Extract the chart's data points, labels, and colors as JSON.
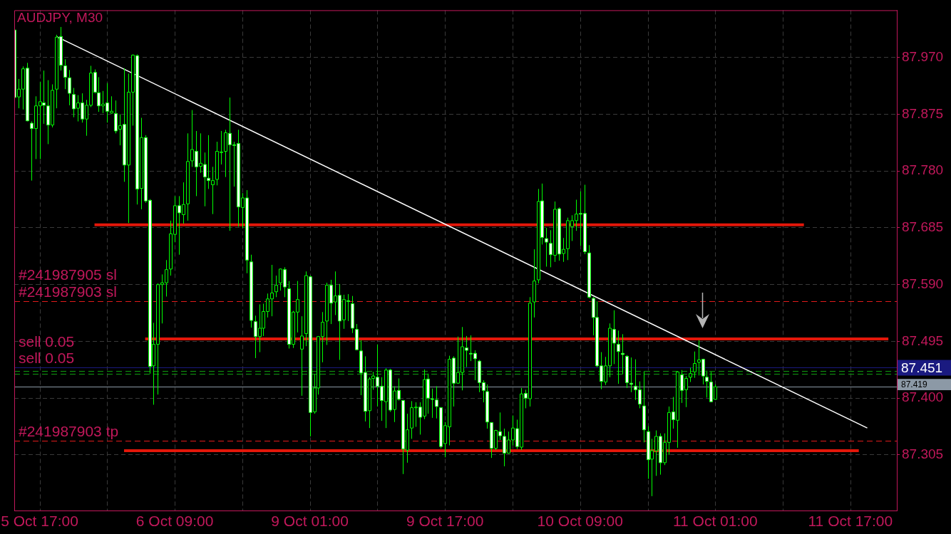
{
  "chart_data": {
    "type": "candlestick",
    "title": "AUDJPY, M30",
    "categories": [
      null,
      null,
      null,
      null,
      null,
      null,
      "5 Oct 17:00",
      null,
      null,
      null,
      null,
      null,
      null,
      null,
      null,
      null,
      null,
      null,
      null,
      null,
      null,
      null,
      null,
      null,
      null,
      null,
      null,
      null,
      null,
      null,
      null,
      null,
      null,
      null,
      null,
      null,
      null,
      null,
      "6 Oct 09:00",
      null,
      null,
      null,
      null,
      null,
      null,
      null,
      null,
      null,
      null,
      null,
      null,
      null,
      null,
      null,
      null,
      null,
      null,
      null,
      null,
      null,
      null,
      null,
      null,
      null,
      null,
      null,
      null,
      null,
      null,
      null,
      "9 Oct 01:00",
      null,
      null,
      null,
      null,
      null,
      null,
      null,
      null,
      null,
      null,
      null,
      null,
      null,
      null,
      null,
      null,
      null,
      null,
      null,
      null,
      null,
      null,
      null,
      null,
      null,
      null,
      null,
      null,
      null,
      null,
      null,
      "9 Oct 17:00",
      null,
      null,
      null,
      null,
      null,
      null,
      null,
      null,
      null,
      null,
      null,
      null,
      null,
      null,
      null,
      null,
      null,
      null,
      null,
      null,
      null,
      null,
      null,
      null,
      null,
      null,
      null,
      null,
      null,
      null,
      null,
      "10 Oct 09:00",
      null,
      null,
      null,
      null,
      null,
      null,
      null,
      null,
      null,
      null,
      null,
      null,
      null,
      null,
      null,
      null,
      null,
      null,
      null,
      null,
      null,
      null,
      null,
      null,
      null,
      null,
      null,
      null,
      null,
      null,
      null,
      "11 Oct 01:00",
      null,
      null,
      null,
      null,
      null,
      null,
      null,
      null,
      null,
      null,
      null,
      null,
      null,
      null,
      null,
      null,
      null,
      null,
      null,
      null,
      null,
      null,
      null,
      null,
      null,
      null,
      null,
      null,
      null,
      null,
      null,
      "11 Oct 17:00",
      null,
      null,
      null,
      null,
      null,
      null,
      null,
      null,
      null,
      null,
      null
    ],
    "ohlc": [
      [
        88.016,
        88.016,
        87.903,
        87.903
      ],
      [
        87.904,
        87.934,
        87.885,
        87.917
      ],
      [
        87.917,
        87.955,
        87.883,
        87.951
      ],
      [
        87.952,
        87.961,
        87.863,
        87.864
      ],
      [
        87.86,
        87.863,
        87.764,
        87.851
      ],
      [
        87.851,
        87.905,
        87.8,
        87.889
      ],
      [
        87.889,
        87.929,
        87.8,
        87.896
      ],
      [
        87.894,
        87.948,
        87.859,
        87.89
      ],
      [
        87.889,
        87.932,
        87.825,
        87.857
      ],
      [
        87.857,
        87.925,
        87.853,
        87.915
      ],
      [
        87.917,
        88.008,
        87.885,
        88.004
      ],
      [
        88.005,
        88.021,
        87.948,
        87.957
      ],
      [
        87.956,
        87.967,
        87.917,
        87.937
      ],
      [
        87.936,
        87.949,
        87.89,
        87.91
      ],
      [
        87.908,
        87.919,
        87.87,
        87.884
      ],
      [
        87.885,
        87.907,
        87.863,
        87.894
      ],
      [
        87.894,
        87.91,
        87.861,
        87.867
      ],
      [
        87.867,
        87.899,
        87.839,
        87.89
      ],
      [
        87.89,
        87.956,
        87.887,
        87.944
      ],
      [
        87.945,
        87.95,
        87.91,
        87.912
      ],
      [
        87.911,
        87.937,
        87.879,
        87.889
      ],
      [
        87.889,
        87.914,
        87.877,
        87.892
      ],
      [
        87.894,
        87.927,
        87.861,
        87.88
      ],
      [
        87.877,
        87.905,
        87.876,
        87.88
      ],
      [
        87.876,
        87.898,
        87.843,
        87.847
      ],
      [
        87.85,
        87.875,
        87.823,
        87.856
      ],
      [
        87.858,
        87.952,
        87.762,
        87.79
      ],
      [
        87.79,
        87.943,
        87.693,
        87.912
      ],
      [
        87.912,
        87.975,
        87.856,
        87.974
      ],
      [
        87.973,
        87.975,
        87.724,
        87.75
      ],
      [
        87.751,
        87.869,
        87.716,
        87.836
      ],
      [
        87.836,
        87.84,
        87.727,
        87.73
      ],
      [
        87.731,
        87.733,
        87.441,
        87.453
      ],
      [
        87.454,
        87.526,
        87.389,
        87.49
      ],
      [
        87.49,
        87.592,
        87.406,
        87.59
      ],
      [
        87.59,
        87.607,
        87.525,
        87.593
      ],
      [
        87.593,
        87.631,
        87.57,
        87.615
      ],
      [
        87.616,
        87.697,
        87.605,
        87.675
      ],
      [
        87.674,
        87.738,
        87.661,
        87.722
      ],
      [
        87.722,
        87.738,
        87.64,
        87.71
      ],
      [
        87.707,
        87.761,
        87.692,
        87.724
      ],
      [
        87.725,
        87.843,
        87.697,
        87.796
      ],
      [
        87.797,
        87.882,
        87.787,
        87.816
      ],
      [
        87.813,
        87.847,
        87.738,
        87.787
      ],
      [
        87.788,
        87.843,
        87.777,
        87.793
      ],
      [
        87.791,
        87.811,
        87.721,
        87.77
      ],
      [
        87.768,
        87.84,
        87.75,
        87.764
      ],
      [
        87.757,
        87.787,
        87.708,
        87.764
      ],
      [
        87.766,
        87.829,
        87.756,
        87.813
      ],
      [
        87.811,
        87.847,
        87.791,
        87.812
      ],
      [
        87.813,
        87.849,
        87.77,
        87.844
      ],
      [
        87.843,
        87.903,
        87.68,
        87.824
      ],
      [
        87.824,
        87.829,
        87.754,
        87.823
      ],
      [
        87.826,
        87.849,
        87.687,
        87.72
      ],
      [
        87.719,
        87.743,
        87.684,
        87.735
      ],
      [
        87.735,
        87.748,
        87.609,
        87.631
      ],
      [
        87.628,
        87.64,
        87.518,
        87.53
      ],
      [
        87.528,
        87.538,
        87.467,
        87.503
      ],
      [
        87.503,
        87.557,
        87.477,
        87.517
      ],
      [
        87.517,
        87.558,
        87.504,
        87.545
      ],
      [
        87.545,
        87.575,
        87.535,
        87.566
      ],
      [
        87.566,
        87.623,
        87.537,
        87.576
      ],
      [
        87.578,
        87.605,
        87.569,
        87.589
      ],
      [
        87.593,
        87.617,
        87.58,
        87.616
      ],
      [
        87.615,
        87.619,
        87.569,
        87.586
      ],
      [
        87.583,
        87.596,
        87.483,
        87.49
      ],
      [
        87.49,
        87.546,
        87.484,
        87.544
      ],
      [
        87.544,
        87.596,
        87.51,
        87.565
      ],
      [
        87.482,
        87.537,
        87.404,
        87.504
      ],
      [
        87.508,
        87.612,
        87.487,
        87.605
      ],
      [
        87.603,
        87.605,
        87.336,
        87.376
      ],
      [
        87.377,
        87.44,
        87.374,
        87.417
      ],
      [
        87.417,
        87.504,
        87.406,
        87.503
      ],
      [
        87.503,
        87.544,
        87.46,
        87.527
      ],
      [
        87.529,
        87.593,
        87.489,
        87.589
      ],
      [
        87.589,
        87.598,
        87.524,
        87.559
      ],
      [
        87.561,
        87.612,
        87.539,
        87.571
      ],
      [
        87.572,
        87.591,
        87.464,
        87.529
      ],
      [
        87.531,
        87.573,
        87.516,
        87.565
      ],
      [
        87.563,
        87.574,
        87.529,
        87.562
      ],
      [
        87.558,
        87.571,
        87.509,
        87.517
      ],
      [
        87.515,
        87.524,
        87.48,
        87.481
      ],
      [
        87.479,
        87.497,
        87.405,
        87.442
      ],
      [
        87.443,
        87.47,
        87.361,
        87.378
      ],
      [
        87.379,
        87.435,
        87.35,
        87.432
      ],
      [
        87.433,
        87.444,
        87.414,
        87.437
      ],
      [
        87.435,
        87.49,
        87.386,
        87.42
      ],
      [
        87.42,
        87.435,
        87.362,
        87.396
      ],
      [
        87.394,
        87.45,
        87.35,
        87.447
      ],
      [
        87.447,
        87.449,
        87.377,
        87.38
      ],
      [
        87.381,
        87.42,
        87.36,
        87.412
      ],
      [
        87.413,
        87.433,
        87.396,
        87.398
      ],
      [
        87.396,
        87.397,
        87.273,
        87.315
      ],
      [
        87.313,
        87.374,
        87.292,
        87.347
      ],
      [
        87.35,
        87.395,
        87.332,
        87.384
      ],
      [
        87.384,
        87.393,
        87.352,
        87.385
      ],
      [
        87.385,
        87.393,
        87.339,
        87.368
      ],
      [
        87.37,
        87.448,
        87.365,
        87.431
      ],
      [
        87.432,
        87.441,
        87.374,
        87.4
      ],
      [
        87.399,
        87.416,
        87.367,
        87.398
      ],
      [
        87.397,
        87.42,
        87.366,
        87.386
      ],
      [
        87.384,
        87.385,
        87.316,
        87.319
      ],
      [
        87.324,
        87.36,
        87.301,
        87.354
      ],
      [
        87.352,
        87.471,
        87.321,
        87.465
      ],
      [
        87.467,
        87.47,
        87.386,
        87.425
      ],
      [
        87.425,
        87.503,
        87.424,
        87.443
      ],
      [
        87.443,
        87.519,
        87.413,
        87.486
      ],
      [
        87.484,
        87.504,
        87.452,
        87.48
      ],
      [
        87.475,
        87.505,
        87.462,
        87.474
      ],
      [
        87.475,
        87.48,
        87.43,
        87.466
      ],
      [
        87.462,
        87.464,
        87.41,
        87.426
      ],
      [
        87.426,
        87.43,
        87.393,
        87.413
      ],
      [
        87.411,
        87.423,
        87.349,
        87.36
      ],
      [
        87.359,
        87.36,
        87.3,
        87.316
      ],
      [
        87.316,
        87.347,
        87.313,
        87.346
      ],
      [
        87.344,
        87.376,
        87.33,
        87.337
      ],
      [
        87.336,
        87.349,
        87.286,
        87.308
      ],
      [
        87.308,
        87.344,
        87.307,
        87.33
      ],
      [
        87.33,
        87.371,
        87.321,
        87.35
      ],
      [
        87.349,
        87.364,
        87.315,
        87.319
      ],
      [
        87.318,
        87.417,
        87.313,
        87.407
      ],
      [
        87.408,
        87.414,
        87.383,
        87.4
      ],
      [
        87.399,
        87.569,
        87.386,
        87.559
      ],
      [
        87.561,
        87.649,
        87.535,
        87.596
      ],
      [
        87.598,
        87.75,
        87.592,
        87.729
      ],
      [
        87.73,
        87.759,
        87.657,
        87.669
      ],
      [
        87.667,
        87.685,
        87.62,
        87.661
      ],
      [
        87.659,
        87.681,
        87.619,
        87.64
      ],
      [
        87.639,
        87.729,
        87.628,
        87.716
      ],
      [
        87.717,
        87.719,
        87.63,
        87.641
      ],
      [
        87.642,
        87.668,
        87.628,
        87.649
      ],
      [
        87.65,
        87.702,
        87.631,
        87.697
      ],
      [
        87.687,
        87.706,
        87.663,
        87.697
      ],
      [
        87.697,
        87.732,
        87.68,
        87.708
      ],
      [
        87.709,
        87.746,
        87.655,
        87.708
      ],
      [
        87.709,
        87.757,
        87.641,
        87.645
      ],
      [
        87.643,
        87.656,
        87.567,
        87.569
      ],
      [
        87.567,
        87.569,
        87.505,
        87.535
      ],
      [
        87.535,
        87.562,
        87.452,
        87.454
      ],
      [
        87.454,
        87.477,
        87.415,
        87.428
      ],
      [
        87.427,
        87.469,
        87.422,
        87.454
      ],
      [
        87.454,
        87.525,
        87.435,
        87.517
      ],
      [
        87.515,
        87.547,
        87.457,
        87.492
      ],
      [
        87.49,
        87.513,
        87.424,
        87.478
      ],
      [
        87.475,
        87.507,
        87.44,
        87.473
      ],
      [
        87.47,
        87.472,
        87.417,
        87.426
      ],
      [
        87.425,
        87.468,
        87.41,
        87.423
      ],
      [
        87.42,
        87.465,
        87.397,
        87.414
      ],
      [
        87.414,
        87.428,
        87.383,
        87.39
      ],
      [
        87.387,
        87.445,
        87.326,
        87.347
      ],
      [
        87.344,
        87.353,
        87.265,
        87.297
      ],
      [
        87.298,
        87.332,
        87.236,
        87.312
      ],
      [
        87.312,
        87.346,
        87.27,
        87.336
      ],
      [
        87.336,
        87.341,
        87.272,
        87.292
      ],
      [
        87.292,
        87.341,
        87.288,
        87.326
      ],
      [
        87.326,
        87.386,
        87.305,
        87.376
      ],
      [
        87.377,
        87.402,
        87.349,
        87.364
      ],
      [
        87.363,
        87.445,
        87.317,
        87.444
      ],
      [
        87.439,
        87.447,
        87.392,
        87.413
      ],
      [
        87.414,
        87.437,
        87.385,
        87.433
      ],
      [
        87.435,
        87.451,
        87.427,
        87.441
      ],
      [
        87.444,
        87.478,
        87.434,
        87.458
      ],
      [
        87.46,
        87.497,
        87.438,
        87.464
      ],
      [
        87.465,
        87.466,
        87.423,
        87.437
      ],
      [
        87.435,
        87.446,
        87.401,
        87.428
      ],
      [
        87.427,
        87.444,
        87.393,
        87.394
      ],
      [
        87.398,
        87.423,
        87.397,
        87.419
      ],
      null,
      null,
      null,
      null,
      null,
      null,
      null,
      null,
      null,
      null,
      null,
      null,
      null,
      null,
      null,
      null,
      null,
      null,
      null,
      null,
      null,
      null,
      null,
      null,
      null,
      null,
      null,
      null,
      null,
      null,
      null,
      null,
      null,
      null,
      null,
      null,
      null,
      null,
      null,
      null,
      null,
      null,
      null
    ],
    "color": "#00ff00",
    "colors": [
      "#ffffff",
      "#000000",
      "#000000",
      "#ffffff",
      "#ffffff",
      "#000000",
      "#000000",
      "#ffffff",
      "#ffffff",
      "#000000",
      "#000000",
      "#ffffff",
      "#ffffff",
      "#ffffff",
      "#ffffff",
      "#000000",
      "#ffffff",
      "#000000",
      "#000000",
      "#ffffff",
      "#ffffff",
      "#000000",
      "#ffffff",
      "#000000",
      "#ffffff",
      "#000000",
      "#ffffff",
      "#000000",
      "#000000",
      "#ffffff",
      "#000000",
      "#ffffff",
      "#ffffff",
      "#000000",
      "#000000",
      "#000000",
      "#000000",
      "#000000",
      "#000000",
      "#ffffff",
      "#000000",
      "#000000",
      "#000000",
      "#ffffff",
      "#000000",
      "#ffffff",
      "#ffffff",
      "#000000",
      "#000000",
      "#000000",
      "#000000",
      "#ffffff",
      "#ffffff",
      "#ffffff",
      "#000000",
      "#ffffff",
      "#ffffff",
      "#ffffff",
      "#000000",
      "#000000",
      "#000000",
      "#000000",
      "#000000",
      "#000000",
      "#ffffff",
      "#ffffff",
      "#000000",
      "#000000",
      "#000000",
      "#000000",
      "#ffffff",
      "#000000",
      "#000000",
      "#000000",
      "#000000",
      "#ffffff",
      "#000000",
      "#ffffff",
      "#000000",
      "#ffffff",
      "#ffffff",
      "#ffffff",
      "#ffffff",
      "#ffffff",
      "#000000",
      "#000000",
      "#ffffff",
      "#ffffff",
      "#000000",
      "#ffffff",
      "#000000",
      "#ffffff",
      "#ffffff",
      "#000000",
      "#000000",
      "#000000",
      "#ffffff",
      "#000000",
      "#ffffff",
      "#ffffff",
      "#ffffff",
      "#ffffff",
      "#000000",
      "#000000",
      "#ffffff",
      "#000000",
      "#000000",
      "#ffffff",
      "#ffffff",
      "#ffffff",
      "#ffffff",
      "#ffffff",
      "#ffffff",
      "#ffffff",
      "#000000",
      "#ffffff",
      "#ffffff",
      "#000000",
      "#000000",
      "#ffffff",
      "#000000",
      "#ffffff",
      "#000000",
      "#000000",
      "#000000",
      "#ffffff",
      "#ffffff",
      "#ffffff",
      "#000000",
      "#ffffff",
      "#000000",
      "#000000",
      "#000000",
      "#000000",
      "#ffffff",
      "#ffffff",
      "#ffffff",
      "#ffffff",
      "#ffffff",
      "#ffffff",
      "#000000",
      "#000000",
      "#ffffff",
      "#ffffff",
      "#ffffff",
      "#ffffff",
      "#ffffff",
      "#ffffff",
      "#ffffff",
      "#ffffff",
      "#ffffff",
      "#000000",
      "#000000",
      "#ffffff",
      "#000000",
      "#000000",
      "#ffffff",
      "#000000",
      "#ffffff",
      "#000000",
      "#000000",
      "#000000",
      "#000000",
      "#ffffff",
      "#ffffff",
      "#ffffff",
      "#000000",
      null,
      null,
      null,
      null,
      null,
      null,
      null,
      null,
      null,
      null,
      null,
      null,
      null,
      null,
      null,
      null,
      null,
      null,
      null,
      null,
      null,
      null,
      null,
      null,
      null,
      null,
      null,
      null,
      null,
      null,
      null,
      null,
      null,
      null,
      null,
      null,
      null,
      null,
      null,
      null,
      null,
      null,
      null
    ],
    "series": [
      {
        "type": "line",
        "color": "#ffffff",
        "values": [
          null,
          null,
          null,
          null,
          null,
          null,
          null,
          null,
          null,
          null,
          88.005,
          null,
          null,
          null,
          null,
          null,
          null,
          null,
          null,
          null,
          null,
          null,
          null,
          null,
          null,
          null,
          null,
          null,
          null,
          null,
          null,
          null,
          null,
          null,
          null,
          null,
          null,
          null,
          null,
          null,
          null,
          null,
          null,
          null,
          null,
          null,
          null,
          null,
          null,
          null,
          null,
          null,
          null,
          null,
          null,
          null,
          null,
          null,
          null,
          null,
          null,
          null,
          null,
          null,
          null,
          null,
          null,
          null,
          null,
          null,
          null,
          null,
          null,
          null,
          null,
          null,
          null,
          null,
          null,
          null,
          null,
          null,
          null,
          null,
          null,
          null,
          null,
          null,
          null,
          null,
          null,
          null,
          null,
          null,
          null,
          null,
          null,
          null,
          null,
          null,
          null,
          null,
          null,
          null,
          null,
          null,
          null,
          null,
          null,
          null,
          null,
          null,
          null,
          null,
          null,
          null,
          null,
          null,
          null,
          null,
          null,
          null,
          null,
          null,
          null,
          null,
          null,
          null,
          null,
          null,
          null,
          null,
          null,
          null,
          null,
          null,
          null,
          null,
          null,
          null,
          null,
          null,
          null,
          null,
          null,
          null,
          null,
          null,
          null,
          null,
          null,
          null,
          null,
          null,
          null,
          null,
          null,
          null,
          null,
          null,
          null,
          null,
          null,
          null,
          null,
          null,
          null,
          null,
          null,
          null,
          null,
          null,
          null,
          null,
          null,
          null,
          null,
          null,
          null,
          null,
          null,
          null,
          null,
          null,
          null,
          null,
          null,
          null,
          null,
          null,
          null,
          null,
          null,
          null,
          null,
          null,
          null,
          null,
          null,
          null,
          null,
          null,
          87.35,
          null,
          null,
          null,
          null,
          null,
          null,
          null
        ]
      },
      {
        "type": "line",
        "color": "#e3170a",
        "values": [
          null,
          null,
          null,
          null,
          null,
          null,
          null,
          null,
          null,
          null,
          null,
          null,
          null,
          null,
          null,
          null,
          null,
          null,
          null,
          87.69,
          null,
          null,
          null,
          null,
          null,
          null,
          null,
          null,
          null,
          null,
          null,
          null,
          null,
          null,
          null,
          null,
          null,
          null,
          null,
          null,
          null,
          null,
          null,
          null,
          null,
          null,
          null,
          null,
          null,
          null,
          null,
          null,
          null,
          null,
          null,
          null,
          null,
          null,
          null,
          null,
          null,
          null,
          null,
          null,
          null,
          null,
          null,
          null,
          null,
          null,
          null,
          null,
          null,
          null,
          null,
          null,
          null,
          null,
          null,
          null,
          null,
          null,
          null,
          null,
          null,
          null,
          null,
          null,
          null,
          null,
          null,
          null,
          null,
          null,
          null,
          null,
          null,
          null,
          null,
          null,
          null,
          null,
          null,
          null,
          null,
          null,
          null,
          null,
          null,
          null,
          null,
          null,
          null,
          null,
          null,
          null,
          null,
          null,
          null,
          null,
          null,
          null,
          null,
          null,
          null,
          null,
          null,
          null,
          null,
          null,
          null,
          null,
          null,
          null,
          null,
          null,
          null,
          null,
          null,
          null,
          null,
          null,
          null,
          null,
          null,
          null,
          null,
          null,
          null,
          null,
          null,
          null,
          null,
          null,
          null,
          null,
          null,
          null,
          null,
          null,
          null,
          null,
          null,
          null,
          null,
          null,
          null,
          null,
          null,
          null,
          null,
          null,
          null,
          null,
          null,
          null,
          null,
          null,
          null,
          null,
          null,
          null,
          null,
          null,
          null,
          null,
          null,
          87.69,
          null,
          null,
          null,
          null,
          null,
          null,
          null,
          null,
          null,
          null,
          null,
          null,
          null,
          null,
          null,
          null,
          null,
          null,
          null,
          null,
          null,
          null
        ]
      },
      {
        "type": "line",
        "color": "#e3170a",
        "values": [
          null,
          null,
          null,
          null,
          null,
          null,
          null,
          null,
          null,
          null,
          null,
          null,
          null,
          null,
          null,
          null,
          null,
          null,
          null,
          null,
          null,
          null,
          null,
          null,
          null,
          null,
          null,
          null,
          null,
          null,
          null,
          87.499,
          null,
          null,
          null,
          null,
          null,
          null,
          null,
          null,
          null,
          null,
          null,
          null,
          null,
          null,
          null,
          null,
          null,
          null,
          null,
          null,
          null,
          null,
          null,
          null,
          null,
          null,
          null,
          null,
          null,
          null,
          null,
          null,
          null,
          null,
          null,
          null,
          null,
          null,
          null,
          null,
          null,
          null,
          null,
          null,
          null,
          null,
          null,
          null,
          null,
          null,
          null,
          null,
          null,
          null,
          null,
          null,
          null,
          null,
          null,
          null,
          null,
          null,
          null,
          null,
          null,
          null,
          null,
          null,
          null,
          null,
          null,
          null,
          null,
          null,
          null,
          null,
          null,
          null,
          null,
          null,
          null,
          null,
          null,
          null,
          null,
          null,
          null,
          null,
          null,
          null,
          null,
          null,
          null,
          null,
          null,
          null,
          null,
          null,
          null,
          null,
          null,
          null,
          null,
          null,
          null,
          null,
          null,
          null,
          null,
          null,
          null,
          null,
          null,
          null,
          null,
          null,
          null,
          null,
          null,
          null,
          null,
          null,
          null,
          null,
          null,
          null,
          null,
          null,
          null,
          null,
          null,
          null,
          null,
          null,
          null,
          null,
          null,
          null,
          null,
          null,
          null,
          null,
          null,
          null,
          null,
          null,
          null,
          null,
          null,
          null,
          null,
          null,
          null,
          null,
          null,
          null,
          null,
          null,
          null,
          null,
          null,
          null,
          null,
          null,
          null,
          null,
          null,
          null,
          null,
          null,
          null,
          null,
          null,
          null,
          null,
          87.499,
          null,
          null
        ]
      },
      {
        "type": "line",
        "color": "#e3170a",
        "values": [
          null,
          null,
          null,
          null,
          null,
          null,
          null,
          null,
          null,
          null,
          null,
          null,
          null,
          null,
          null,
          null,
          null,
          null,
          null,
          null,
          null,
          null,
          null,
          null,
          null,
          null,
          87.312,
          null,
          null,
          null,
          null,
          null,
          null,
          null,
          null,
          null,
          null,
          null,
          null,
          null,
          null,
          null,
          null,
          null,
          null,
          null,
          null,
          null,
          null,
          null,
          null,
          null,
          null,
          null,
          null,
          null,
          null,
          null,
          null,
          null,
          null,
          null,
          null,
          null,
          null,
          null,
          null,
          null,
          null,
          null,
          null,
          null,
          null,
          null,
          null,
          null,
          null,
          null,
          null,
          null,
          null,
          null,
          null,
          null,
          null,
          null,
          null,
          null,
          null,
          null,
          null,
          null,
          null,
          null,
          null,
          null,
          null,
          null,
          null,
          null,
          null,
          null,
          null,
          null,
          null,
          null,
          null,
          null,
          null,
          null,
          null,
          null,
          null,
          null,
          null,
          null,
          null,
          null,
          null,
          null,
          null,
          null,
          null,
          null,
          null,
          null,
          null,
          null,
          null,
          null,
          null,
          null,
          null,
          null,
          null,
          null,
          null,
          null,
          null,
          null,
          null,
          null,
          null,
          null,
          null,
          null,
          null,
          null,
          null,
          null,
          null,
          null,
          null,
          null,
          null,
          null,
          null,
          null,
          null,
          null,
          null,
          null,
          null,
          null,
          null,
          null,
          null,
          null,
          null,
          null,
          null,
          null,
          null,
          null,
          null,
          null,
          null,
          null,
          null,
          null,
          null,
          null,
          null,
          null,
          null,
          null,
          null,
          null,
          null,
          null,
          null,
          null,
          null,
          null,
          null,
          null,
          null,
          null,
          null,
          null,
          87.312,
          null,
          null,
          null,
          null,
          null,
          null,
          null,
          null,
          null
        ]
      }
    ],
    "ylim": [
      87.212,
      88.049
    ],
    "yticks": [
      87.305,
      {
        "value": 87.4,
        "label": "87.400"
      },
      87.495,
      {
        "value": 87.59,
        "label": "87.590"
      },
      87.685,
      {
        "value": 87.78,
        "label": "87.780"
      },
      87.875,
      {
        "value": 87.97,
        "label": "87.970"
      }
    ],
    "grid": true,
    "ref_lines": [
      {
        "axis": "y",
        "value": 87.562,
        "label": "#241987903 sl",
        "color": "#e01b1b",
        "line_style": "dashed"
      },
      {
        "axis": "y",
        "value": 87.445,
        "label": "sell 0.05",
        "color": "#109c10",
        "line_style": "dashed"
      },
      {
        "axis": "y",
        "value": 87.441,
        "label": "sell 0.05",
        "color": "#109c10",
        "line_style": "dashed"
      },
      {
        "axis": "y",
        "value": 87.451,
        "label": "87.451",
        "color": "#1a1a80"
      },
      {
        "axis": "y",
        "value": 87.419,
        "label": "87.419",
        "color": "#8c99a6"
      },
      {
        "axis": "y",
        "value": 87.329,
        "label": "#241987903 tp",
        "color": "#e01b1b",
        "line_style": "dashed"
      }
    ],
    "annotations": [
      {
        "text": "#241987905 sl",
        "y": 87.562
      }
    ]
  }
}
